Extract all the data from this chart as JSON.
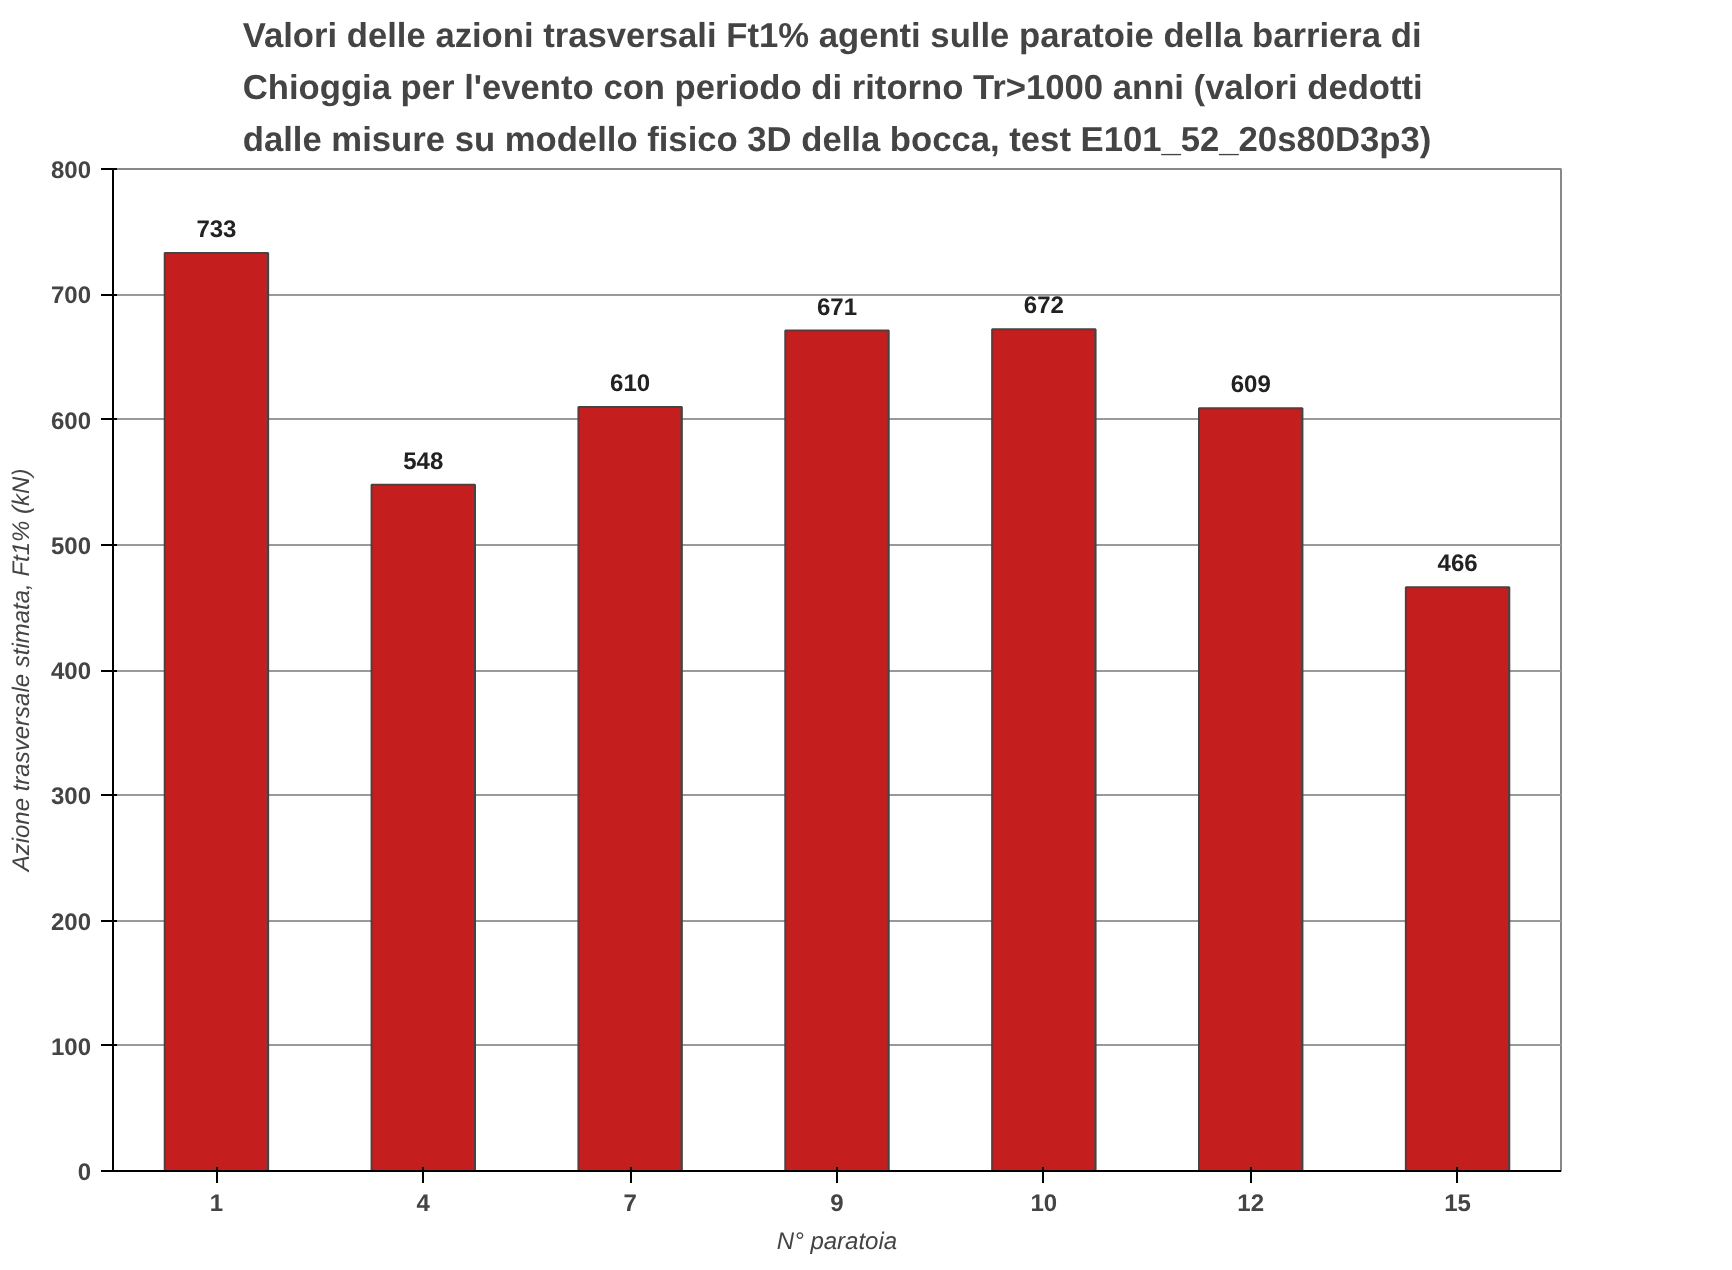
{
  "chart_data": {
    "type": "bar",
    "title": "Valori delle azioni trasversali Ft1% agenti sulle paratoie della barriera di\nChioggia per l'evento con periodo di ritorno Tr>1000 anni (valori dedotti\ndalle misure su modello fisico 3D della bocca, test E101_52_20s80D3p3)",
    "xlabel": "N° paratoia",
    "ylabel": "Azione trasversale stimata, Ft1% (kN)",
    "categories": [
      "1",
      "4",
      "7",
      "9",
      "10",
      "12",
      "15"
    ],
    "values": [
      733,
      548,
      610,
      671,
      672,
      609,
      466
    ],
    "color": "#c41e1e",
    "ylim": [
      0,
      800
    ],
    "yticks": [
      0,
      100,
      200,
      300,
      400,
      500,
      600,
      700,
      800
    ],
    "grid": "y",
    "data_labels": true
  }
}
